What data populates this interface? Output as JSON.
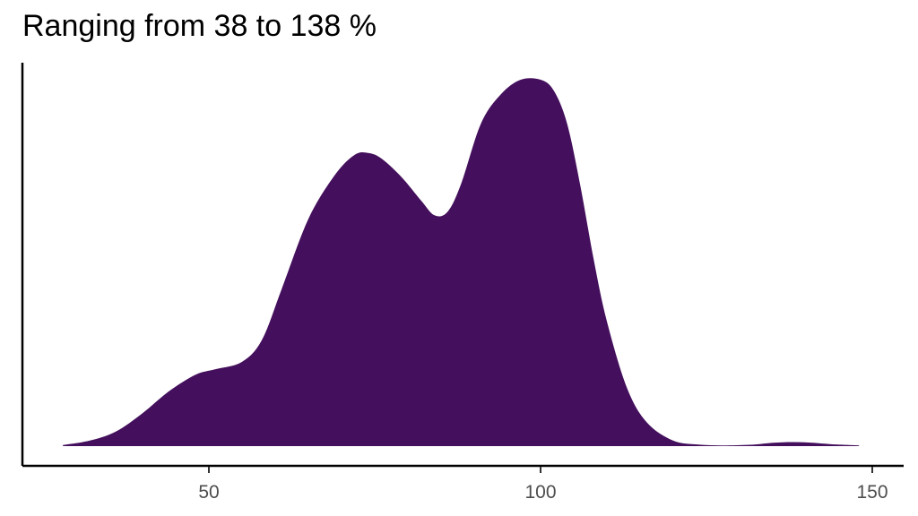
{
  "chart_data": {
    "type": "area",
    "title": "Ranging from 38 to 138 %",
    "xlabel": "",
    "ylabel": "",
    "xlim": [
      22,
      151
    ],
    "ylim": [
      0,
      1
    ],
    "xticks": [
      50,
      100,
      150
    ],
    "y_axis_ticks": false,
    "grid": false,
    "legend": "none",
    "fill_color": "#440f5c",
    "series": [
      {
        "x": [
          28,
          32,
          36,
          40,
          44,
          48,
          51,
          55,
          58,
          61,
          65,
          69,
          72,
          74,
          76,
          79,
          82,
          84,
          86,
          88,
          91,
          94,
          97,
          100,
          102,
          104,
          106,
          108,
          110,
          113,
          116,
          120,
          124,
          128,
          132,
          135,
          138,
          141,
          144,
          148
        ],
        "y": [
          0.003,
          0.015,
          0.04,
          0.09,
          0.15,
          0.195,
          0.21,
          0.23,
          0.29,
          0.43,
          0.62,
          0.74,
          0.795,
          0.8,
          0.785,
          0.735,
          0.67,
          0.63,
          0.64,
          0.715,
          0.88,
          0.96,
          1.0,
          1.0,
          0.97,
          0.88,
          0.71,
          0.51,
          0.34,
          0.16,
          0.065,
          0.015,
          0.004,
          0.002,
          0.004,
          0.009,
          0.011,
          0.009,
          0.005,
          0.002
        ]
      }
    ]
  }
}
